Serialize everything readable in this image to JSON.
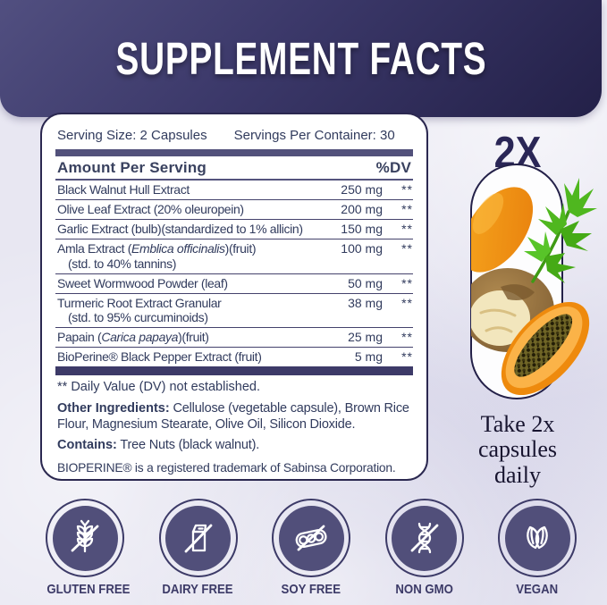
{
  "header": {
    "title": "SUPPLEMENT FACTS"
  },
  "facts": {
    "serving_size": "Serving Size: 2 Capsules",
    "servings_per_container": "Servings Per Container: 30",
    "amount_header": "Amount Per Serving",
    "dv_header": "%DV",
    "rows": [
      {
        "segments": [
          {
            "t": "Black Walnut Hull Extract"
          }
        ],
        "amount": "250 mg",
        "dv": "**"
      },
      {
        "segments": [
          {
            "t": "Olive Leaf Extract (20% oleuropein)"
          }
        ],
        "amount": "200 mg",
        "dv": "**"
      },
      {
        "segments": [
          {
            "t": "Garlic Extract (bulb)(standardized to 1% allicin)"
          }
        ],
        "amount": "150 mg",
        "dv": "**"
      },
      {
        "segments": [
          {
            "t": "Amla Extract ("
          },
          {
            "t": "Emblica officinalis",
            "i": true
          },
          {
            "t": ")(fruit)"
          }
        ],
        "line2": "(std. to 40% tannins)",
        "amount": "100 mg",
        "dv": "**"
      },
      {
        "segments": [
          {
            "t": "Sweet Wormwood Powder (leaf)"
          }
        ],
        "amount": "50 mg",
        "dv": "**"
      },
      {
        "segments": [
          {
            "t": "Turmeric Root Extract Granular"
          }
        ],
        "line2": "(std. to 95% curcuminoids)",
        "amount": "38 mg",
        "dv": "**"
      },
      {
        "segments": [
          {
            "t": "Papain ("
          },
          {
            "t": "Carica papaya",
            "i": true
          },
          {
            "t": ")(fruit)"
          }
        ],
        "amount": "25 mg",
        "dv": "**"
      },
      {
        "segments": [
          {
            "t": "BioPerine® Black Pepper Extract (fruit)"
          }
        ],
        "amount": "5 mg",
        "dv": "**"
      }
    ],
    "dv_footnote": "** Daily Value (DV) not established.",
    "other_ingredients_label": "Other Ingredients:",
    "other_ingredients": " Cellulose (vegetable capsule), Brown Rice Flour, Magnesium Stearate, Olive Oil, Silicon Dioxide.",
    "contains_label": "Contains:",
    "contains": " Tree Nuts (black walnut).",
    "trademark_note": "BIOPERINE® is a registered trademark of Sabinsa Corporation."
  },
  "dosage": {
    "multiplier": "2X",
    "instruction_lines": [
      "Take 2x",
      "capsules",
      "daily"
    ]
  },
  "badges": [
    {
      "label": "GLUTEN FREE",
      "icon": "wheat-slash-icon"
    },
    {
      "label": "DAIRY FREE",
      "icon": "milk-carton-slash-icon"
    },
    {
      "label": "SOY FREE",
      "icon": "soy-pod-slash-icon"
    },
    {
      "label": "NON GMO",
      "icon": "dna-slash-icon"
    },
    {
      "label": "VEGAN",
      "icon": "leaves-icon"
    }
  ],
  "colors": {
    "header_gradient_start": "#514f80",
    "header_gradient_end": "#232048",
    "background": "#e8e7f2",
    "panel_border": "#2b2850",
    "text_navy": "#313b5d",
    "bar_navy": "#52517b",
    "badge_fill": "#514f7a",
    "turmeric_orange": "#f29411",
    "leaf_green": "#4cb31e"
  }
}
